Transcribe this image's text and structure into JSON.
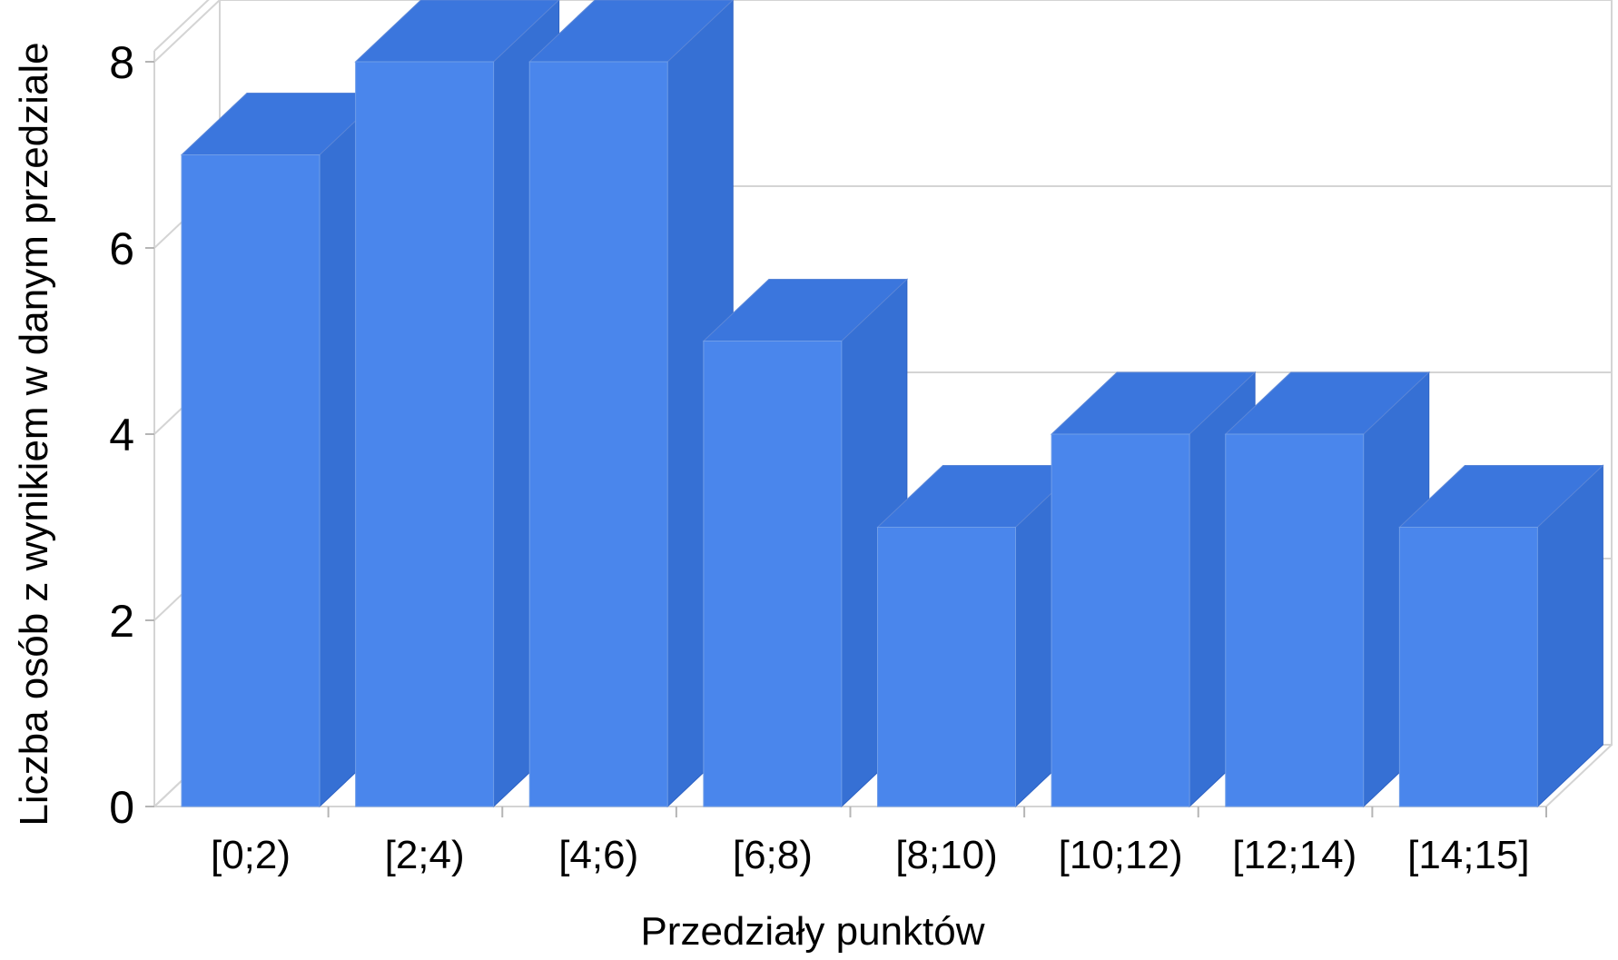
{
  "chart_data": {
    "type": "bar",
    "style": "3d",
    "categories": [
      "[0;2)",
      "[2;4)",
      "[4;6)",
      "[6;8)",
      "[8;10)",
      "[10;12)",
      "[12;14)",
      "[14;15]"
    ],
    "values": [
      7,
      8,
      8,
      5,
      3,
      4,
      4,
      3
    ],
    "xlabel": "Przedziały punktów",
    "ylabel": "Liczba osób z wynikiem w danym przedziale",
    "ylim": [
      0,
      8
    ],
    "yticks": [
      "0",
      "2",
      "4",
      "6",
      "8"
    ],
    "grid": true,
    "legend": "none"
  },
  "colors": {
    "bar_front": "#4a86ec",
    "bar_top": "#3b76dd",
    "bar_side": "#3670d4",
    "grid": "#d4d4d4"
  }
}
